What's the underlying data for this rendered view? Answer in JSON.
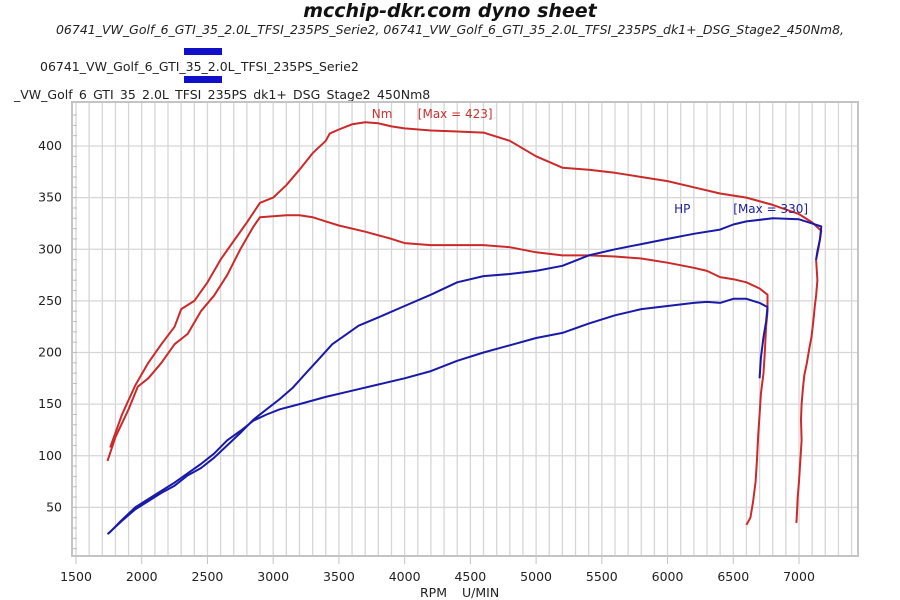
{
  "chart_data": {
    "type": "line",
    "title": "mcchip-dkr.com dyno sheet",
    "subtitle": "06741_VW_Golf_6_GTI_35_2.0L_TFSI_235PS_Serie2, 06741_VW_Golf_6_GTI_35_2.0L_TFSI_235PS_dk1+_DSG_Stage2_450Nm8,",
    "legend": [
      {
        "label": "06741_VW_Golf_6_GTI_35_2.0L_TFSI_235PS_Serie2",
        "color": "#1010c8"
      },
      {
        "label": "_VW_Golf_6_GTI_35_2.0L_TFSI_235PS_dk1+_DSG_Stage2_450Nm8",
        "color": "#1010c8"
      }
    ],
    "legend_position": "top-left",
    "xlabel": "RPM",
    "xunit": "U/MIN",
    "xlim": [
      1450,
      7450
    ],
    "ylim": [
      0,
      440
    ],
    "grid": true,
    "xticks": [
      1500,
      2000,
      2500,
      3000,
      3500,
      4000,
      4500,
      5000,
      5500,
      6000,
      6500,
      7000
    ],
    "yticks": [
      50,
      100,
      150,
      200,
      250,
      300,
      350,
      400
    ],
    "annotations": [
      {
        "text": "Nm",
        "color": "#c83030",
        "x": 3750,
        "y": 427
      },
      {
        "text": "[Max = 423]",
        "color": "#c83030",
        "x": 4100,
        "y": 427
      },
      {
        "text": "HP",
        "color": "#2020a0",
        "x": 6050,
        "y": 335
      },
      {
        "text": "[Max = 330]",
        "color": "#2020a0",
        "x": 6500,
        "y": 335
      }
    ],
    "series": [
      {
        "name": "Nm dk1+ DSG Stage2",
        "color": "#cc2a2a",
        "points": [
          [
            1760,
            108
          ],
          [
            1850,
            140
          ],
          [
            1950,
            168
          ],
          [
            2050,
            190
          ],
          [
            2150,
            208
          ],
          [
            2250,
            225
          ],
          [
            2300,
            242
          ],
          [
            2400,
            250
          ],
          [
            2500,
            268
          ],
          [
            2600,
            290
          ],
          [
            2700,
            308
          ],
          [
            2800,
            326
          ],
          [
            2900,
            345
          ],
          [
            3000,
            350
          ],
          [
            3100,
            362
          ],
          [
            3200,
            377
          ],
          [
            3300,
            393
          ],
          [
            3400,
            405
          ],
          [
            3430,
            412
          ],
          [
            3500,
            416
          ],
          [
            3600,
            421
          ],
          [
            3700,
            423
          ],
          [
            3800,
            422
          ],
          [
            3900,
            419
          ],
          [
            4000,
            417
          ],
          [
            4200,
            415
          ],
          [
            4400,
            414
          ],
          [
            4600,
            413
          ],
          [
            4800,
            405
          ],
          [
            5000,
            390
          ],
          [
            5200,
            379
          ],
          [
            5400,
            377
          ],
          [
            5600,
            374
          ],
          [
            5800,
            370
          ],
          [
            6000,
            366
          ],
          [
            6200,
            360
          ],
          [
            6400,
            354
          ],
          [
            6600,
            350
          ],
          [
            6800,
            343
          ],
          [
            7000,
            334
          ],
          [
            7100,
            326
          ],
          [
            7170,
            318
          ],
          [
            7150,
            302
          ],
          [
            7130,
            290
          ],
          [
            7140,
            270
          ],
          [
            7130,
            255
          ],
          [
            7120,
            245
          ],
          [
            7110,
            232
          ],
          [
            7095,
            215
          ],
          [
            7080,
            205
          ],
          [
            7060,
            190
          ],
          [
            7040,
            178
          ],
          [
            7030,
            165
          ],
          [
            7020,
            150
          ],
          [
            7015,
            135
          ],
          [
            7020,
            115
          ],
          [
            7010,
            95
          ],
          [
            7000,
            75
          ],
          [
            6990,
            60
          ],
          [
            6985,
            45
          ],
          [
            6980,
            35
          ]
        ]
      },
      {
        "name": "Nm Serie2",
        "color": "#cc2a2a",
        "points": [
          [
            1740,
            95
          ],
          [
            1800,
            118
          ],
          [
            1900,
            145
          ],
          [
            1970,
            167
          ],
          [
            2050,
            175
          ],
          [
            2150,
            190
          ],
          [
            2250,
            208
          ],
          [
            2350,
            218
          ],
          [
            2450,
            240
          ],
          [
            2550,
            255
          ],
          [
            2650,
            275
          ],
          [
            2750,
            300
          ],
          [
            2850,
            322
          ],
          [
            2900,
            331
          ],
          [
            3000,
            332
          ],
          [
            3100,
            333
          ],
          [
            3200,
            333
          ],
          [
            3300,
            331
          ],
          [
            3400,
            327
          ],
          [
            3500,
            323
          ],
          [
            3700,
            317
          ],
          [
            3900,
            310
          ],
          [
            4000,
            306
          ],
          [
            4200,
            304
          ],
          [
            4400,
            304
          ],
          [
            4600,
            304
          ],
          [
            4800,
            302
          ],
          [
            5000,
            297
          ],
          [
            5200,
            294
          ],
          [
            5400,
            294
          ],
          [
            5600,
            293
          ],
          [
            5800,
            291
          ],
          [
            6000,
            287
          ],
          [
            6200,
            282
          ],
          [
            6300,
            279
          ],
          [
            6400,
            273
          ],
          [
            6500,
            271
          ],
          [
            6600,
            268
          ],
          [
            6700,
            262
          ],
          [
            6760,
            256
          ],
          [
            6760,
            240
          ],
          [
            6750,
            225
          ],
          [
            6740,
            200
          ],
          [
            6730,
            180
          ],
          [
            6710,
            160
          ],
          [
            6700,
            140
          ],
          [
            6690,
            120
          ],
          [
            6680,
            95
          ],
          [
            6670,
            75
          ],
          [
            6650,
            55
          ],
          [
            6630,
            40
          ],
          [
            6600,
            33
          ]
        ]
      },
      {
        "name": "HP dk1+ DSG Stage2",
        "color": "#1a1aa8",
        "points": [
          [
            1740,
            24
          ],
          [
            1850,
            37
          ],
          [
            1950,
            48
          ],
          [
            2050,
            56
          ],
          [
            2150,
            64
          ],
          [
            2250,
            71
          ],
          [
            2350,
            81
          ],
          [
            2450,
            88
          ],
          [
            2550,
            98
          ],
          [
            2650,
            110
          ],
          [
            2750,
            122
          ],
          [
            2850,
            135
          ],
          [
            2950,
            145
          ],
          [
            3050,
            155
          ],
          [
            3150,
            166
          ],
          [
            3250,
            180
          ],
          [
            3350,
            194
          ],
          [
            3450,
            208
          ],
          [
            3550,
            217
          ],
          [
            3650,
            226
          ],
          [
            3800,
            234
          ],
          [
            4000,
            245
          ],
          [
            4200,
            256
          ],
          [
            4400,
            268
          ],
          [
            4600,
            274
          ],
          [
            4800,
            276
          ],
          [
            5000,
            279
          ],
          [
            5200,
            284
          ],
          [
            5400,
            294
          ],
          [
            5600,
            300
          ],
          [
            5800,
            305
          ],
          [
            6000,
            310
          ],
          [
            6200,
            315
          ],
          [
            6400,
            319
          ],
          [
            6500,
            324
          ],
          [
            6600,
            327
          ],
          [
            6800,
            330
          ],
          [
            7000,
            329
          ],
          [
            7100,
            325
          ],
          [
            7170,
            322
          ],
          [
            7160,
            310
          ],
          [
            7140,
            298
          ],
          [
            7130,
            290
          ]
        ]
      },
      {
        "name": "HP Serie2",
        "color": "#1a1aa8",
        "points": [
          [
            1750,
            25
          ],
          [
            1850,
            38
          ],
          [
            1950,
            50
          ],
          [
            2050,
            58
          ],
          [
            2150,
            66
          ],
          [
            2250,
            74
          ],
          [
            2350,
            83
          ],
          [
            2450,
            92
          ],
          [
            2550,
            102
          ],
          [
            2650,
            115
          ],
          [
            2750,
            124
          ],
          [
            2850,
            134
          ],
          [
            2950,
            140
          ],
          [
            3050,
            145
          ],
          [
            3200,
            150
          ],
          [
            3400,
            157
          ],
          [
            3600,
            163
          ],
          [
            3800,
            169
          ],
          [
            4000,
            175
          ],
          [
            4200,
            182
          ],
          [
            4400,
            192
          ],
          [
            4600,
            200
          ],
          [
            4800,
            207
          ],
          [
            5000,
            214
          ],
          [
            5200,
            219
          ],
          [
            5400,
            228
          ],
          [
            5600,
            236
          ],
          [
            5800,
            242
          ],
          [
            6000,
            245
          ],
          [
            6200,
            248
          ],
          [
            6300,
            249
          ],
          [
            6400,
            248
          ],
          [
            6500,
            252
          ],
          [
            6600,
            252
          ],
          [
            6700,
            248
          ],
          [
            6760,
            244
          ],
          [
            6750,
            230
          ],
          [
            6730,
            215
          ],
          [
            6710,
            195
          ],
          [
            6700,
            175
          ]
        ]
      }
    ]
  }
}
